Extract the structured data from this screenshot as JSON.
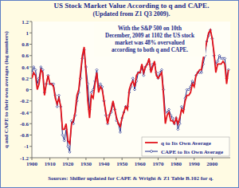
{
  "chart_data": {
    "type": "line",
    "title": "US Stock Market Value According to q and CAPE.",
    "subtitle": "(Updated from Z1 Q3 2009).",
    "ylabel": "q and CAPE to their own averages (log numbers)",
    "annotation": [
      "With the S&P 500 on 10th",
      "December, 2009 at 1102 the US stock",
      "market was 48% overvalued",
      "according to both q and CAPE."
    ],
    "source": "Sources: Shiller updated for CAPE & Wright & Z1 Table B.102 for q.",
    "x": [
      1900,
      1901,
      1902,
      1903,
      1904,
      1905,
      1906,
      1907,
      1908,
      1909,
      1910,
      1911,
      1912,
      1913,
      1914,
      1915,
      1916,
      1917,
      1918,
      1919,
      1920,
      1921,
      1922,
      1923,
      1924,
      1925,
      1926,
      1927,
      1928,
      1929,
      1930,
      1931,
      1932,
      1933,
      1934,
      1935,
      1936,
      1937,
      1938,
      1939,
      1940,
      1941,
      1942,
      1943,
      1944,
      1945,
      1946,
      1947,
      1948,
      1949,
      1950,
      1951,
      1952,
      1953,
      1954,
      1955,
      1956,
      1957,
      1958,
      1959,
      1960,
      1961,
      1962,
      1963,
      1964,
      1965,
      1966,
      1967,
      1968,
      1969,
      1970,
      1971,
      1972,
      1973,
      1974,
      1975,
      1976,
      1977,
      1978,
      1979,
      1980,
      1981,
      1982,
      1983,
      1984,
      1985,
      1986,
      1987,
      1988,
      1989,
      1990,
      1991,
      1992,
      1993,
      1994,
      1995,
      1996,
      1997,
      1998,
      1999,
      2000,
      2001,
      2002,
      2003,
      2004,
      2005,
      2006,
      2007,
      2008,
      2009
    ],
    "series": [
      {
        "name": "q to Its Own Average",
        "color": "#e3141c",
        "line_style": "solid",
        "marker": "none",
        "values": [
          0.2,
          0.3,
          0.25,
          0.0,
          0.1,
          0.35,
          0.3,
          -0.1,
          0.1,
          0.25,
          0.1,
          0.1,
          0.05,
          -0.15,
          -0.25,
          -0.15,
          -0.3,
          -0.7,
          -0.7,
          -0.6,
          -0.9,
          -0.95,
          -0.6,
          -0.55,
          -0.4,
          -0.1,
          0.0,
          0.3,
          0.6,
          0.75,
          0.3,
          -0.2,
          -0.5,
          -0.1,
          -0.15,
          0.1,
          0.3,
          -0.05,
          0.05,
          0.0,
          -0.2,
          -0.4,
          -0.6,
          -0.45,
          -0.35,
          -0.2,
          -0.35,
          -0.5,
          -0.6,
          -0.65,
          -0.5,
          -0.4,
          -0.3,
          -0.35,
          0.0,
          0.1,
          0.15,
          0.05,
          0.25,
          0.3,
          0.3,
          0.45,
          0.3,
          0.4,
          0.45,
          0.55,
          0.3,
          0.4,
          0.5,
          0.25,
          0.2,
          0.25,
          0.3,
          -0.1,
          -0.6,
          -0.45,
          -0.4,
          -0.55,
          -0.55,
          -0.6,
          -0.5,
          -0.6,
          -0.5,
          -0.35,
          -0.4,
          -0.2,
          -0.1,
          -0.1,
          -0.05,
          0.1,
          0.05,
          0.25,
          0.3,
          0.35,
          0.35,
          0.55,
          0.7,
          0.85,
          1.0,
          1.05,
          0.9,
          0.65,
          0.3,
          0.45,
          0.45,
          0.45,
          0.5,
          0.45,
          0.1,
          0.35
        ]
      },
      {
        "name": "CAPE to Its Own Average",
        "color": "#1c2a8a",
        "line_style": "solid",
        "marker": "diamond",
        "values": [
          0.3,
          0.4,
          0.35,
          0.1,
          0.2,
          0.4,
          0.35,
          -0.05,
          0.1,
          0.25,
          0.1,
          0.1,
          0.1,
          -0.1,
          -0.3,
          -0.1,
          -0.3,
          -0.8,
          -0.9,
          -0.7,
          -1.0,
          -1.1,
          -0.55,
          -0.6,
          -0.45,
          -0.2,
          -0.05,
          0.2,
          0.55,
          0.7,
          0.4,
          0.1,
          -0.35,
          -0.05,
          0.0,
          0.15,
          0.35,
          0.05,
          0.1,
          0.05,
          -0.2,
          -0.45,
          -0.6,
          -0.45,
          -0.4,
          -0.25,
          -0.35,
          -0.55,
          -0.6,
          -0.75,
          -0.5,
          -0.4,
          -0.3,
          -0.3,
          -0.05,
          0.05,
          0.2,
          0.0,
          0.15,
          0.3,
          0.3,
          0.4,
          0.25,
          0.4,
          0.45,
          0.5,
          0.35,
          0.45,
          0.45,
          0.3,
          0.2,
          0.3,
          0.35,
          0.0,
          -0.4,
          -0.4,
          -0.35,
          -0.45,
          -0.5,
          -0.6,
          -0.5,
          -0.7,
          -0.6,
          -0.3,
          -0.35,
          -0.15,
          0.0,
          0.0,
          0.05,
          0.15,
          0.1,
          0.25,
          0.3,
          0.3,
          0.3,
          0.45,
          0.6,
          0.85,
          0.95,
          1.05,
          0.9,
          0.6,
          0.45,
          0.5,
          0.6,
          0.55,
          0.55,
          0.55,
          0.2,
          0.35
        ]
      }
    ],
    "xlim": [
      1900,
      2010
    ],
    "xticks": [
      1900,
      1910,
      1920,
      1930,
      1940,
      1950,
      1960,
      1970,
      1980,
      1990,
      2000
    ],
    "ylim": [
      -1.2,
      1.2
    ],
    "yticks": [
      -1.2,
      -1,
      -0.8,
      -0.6,
      -0.4,
      -0.2,
      0,
      0.2,
      0.4,
      0.6,
      0.8,
      1,
      1.2
    ],
    "grid": false,
    "legend": "lower right"
  }
}
